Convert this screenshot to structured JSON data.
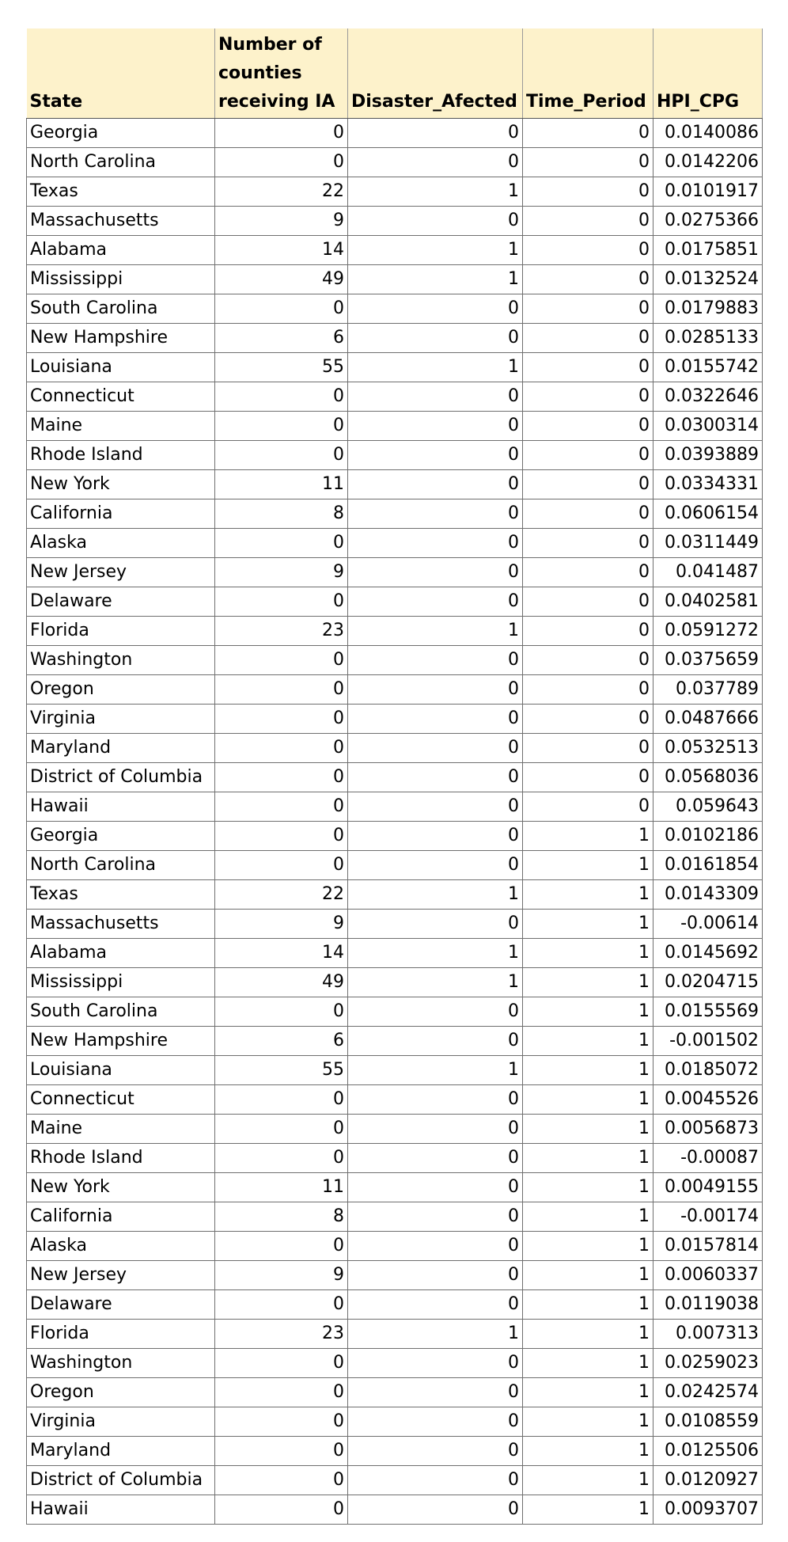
{
  "table": {
    "headers": [
      "State",
      "Number of counties receiving IA",
      "Disaster_Afected",
      "Time_Period",
      "HPI_CPG"
    ],
    "rows": [
      [
        "Georgia",
        "0",
        "0",
        "0",
        "0.0140086"
      ],
      [
        "North Carolina",
        "0",
        "0",
        "0",
        "0.0142206"
      ],
      [
        "Texas",
        "22",
        "1",
        "0",
        "0.0101917"
      ],
      [
        "Massachusetts",
        "9",
        "0",
        "0",
        "0.0275366"
      ],
      [
        "Alabama",
        "14",
        "1",
        "0",
        "0.0175851"
      ],
      [
        "Mississippi",
        "49",
        "1",
        "0",
        "0.0132524"
      ],
      [
        "South Carolina",
        "0",
        "0",
        "0",
        "0.0179883"
      ],
      [
        "New Hampshire",
        "6",
        "0",
        "0",
        "0.0285133"
      ],
      [
        "Louisiana",
        "55",
        "1",
        "0",
        "0.0155742"
      ],
      [
        "Connecticut",
        "0",
        "0",
        "0",
        "0.0322646"
      ],
      [
        "Maine",
        "0",
        "0",
        "0",
        "0.0300314"
      ],
      [
        "Rhode Island",
        "0",
        "0",
        "0",
        "0.0393889"
      ],
      [
        "New York",
        "11",
        "0",
        "0",
        "0.0334331"
      ],
      [
        "California",
        "8",
        "0",
        "0",
        "0.0606154"
      ],
      [
        "Alaska",
        "0",
        "0",
        "0",
        "0.0311449"
      ],
      [
        "New Jersey",
        "9",
        "0",
        "0",
        "0.041487"
      ],
      [
        "Delaware",
        "0",
        "0",
        "0",
        "0.0402581"
      ],
      [
        "Florida",
        "23",
        "1",
        "0",
        "0.0591272"
      ],
      [
        "Washington",
        "0",
        "0",
        "0",
        "0.0375659"
      ],
      [
        "Oregon",
        "0",
        "0",
        "0",
        "0.037789"
      ],
      [
        "Virginia",
        "0",
        "0",
        "0",
        "0.0487666"
      ],
      [
        "Maryland",
        "0",
        "0",
        "0",
        "0.0532513"
      ],
      [
        "District of Columbia",
        "0",
        "0",
        "0",
        "0.0568036"
      ],
      [
        "Hawaii",
        "0",
        "0",
        "0",
        "0.059643"
      ],
      [
        "Georgia",
        "0",
        "0",
        "1",
        "0.0102186"
      ],
      [
        "North Carolina",
        "0",
        "0",
        "1",
        "0.0161854"
      ],
      [
        "Texas",
        "22",
        "1",
        "1",
        "0.0143309"
      ],
      [
        "Massachusetts",
        "9",
        "0",
        "1",
        "-0.00614"
      ],
      [
        "Alabama",
        "14",
        "1",
        "1",
        "0.0145692"
      ],
      [
        "Mississippi",
        "49",
        "1",
        "1",
        "0.0204715"
      ],
      [
        "South Carolina",
        "0",
        "0",
        "1",
        "0.0155569"
      ],
      [
        "New Hampshire",
        "6",
        "0",
        "1",
        "-0.001502"
      ],
      [
        "Louisiana",
        "55",
        "1",
        "1",
        "0.0185072"
      ],
      [
        "Connecticut",
        "0",
        "0",
        "1",
        "0.0045526"
      ],
      [
        "Maine",
        "0",
        "0",
        "1",
        "0.0056873"
      ],
      [
        "Rhode Island",
        "0",
        "0",
        "1",
        "-0.00087"
      ],
      [
        "New York",
        "11",
        "0",
        "1",
        "0.0049155"
      ],
      [
        "California",
        "8",
        "0",
        "1",
        "-0.00174"
      ],
      [
        "Alaska",
        "0",
        "0",
        "1",
        "0.0157814"
      ],
      [
        "New Jersey",
        "9",
        "0",
        "1",
        "0.0060337"
      ],
      [
        "Delaware",
        "0",
        "0",
        "1",
        "0.0119038"
      ],
      [
        "Florida",
        "23",
        "1",
        "1",
        "0.007313"
      ],
      [
        "Washington",
        "0",
        "0",
        "1",
        "0.0259023"
      ],
      [
        "Oregon",
        "0",
        "0",
        "1",
        "0.0242574"
      ],
      [
        "Virginia",
        "0",
        "0",
        "1",
        "0.0108559"
      ],
      [
        "Maryland",
        "0",
        "0",
        "1",
        "0.0125506"
      ],
      [
        "District of Columbia",
        "0",
        "0",
        "1",
        "0.0120927"
      ],
      [
        "Hawaii",
        "0",
        "0",
        "1",
        "0.0093707"
      ]
    ]
  },
  "colors": {
    "header_fill": "#fdf2cb",
    "grid_line": "#6f6f6f"
  }
}
